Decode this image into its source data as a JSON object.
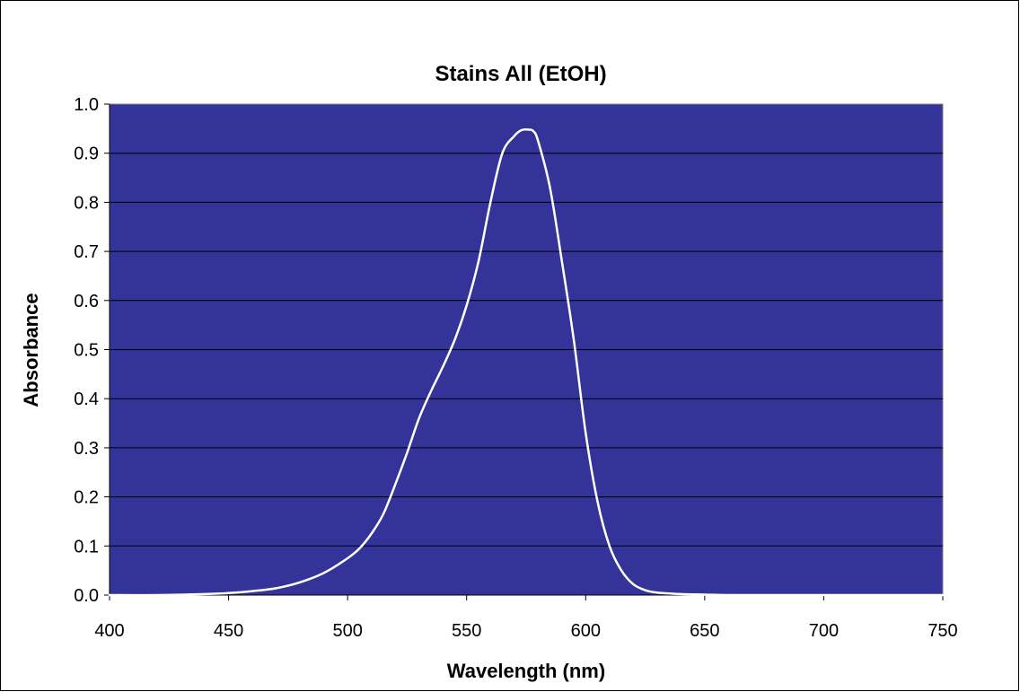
{
  "chart_data": {
    "type": "line",
    "title": "Stains All (EtOH)",
    "xlabel": "Wavelength (nm)",
    "ylabel": "Absorbance",
    "xlim": [
      400,
      750
    ],
    "ylim": [
      0.0,
      1.0
    ],
    "x_ticks": [
      "400",
      "450",
      "500",
      "550",
      "600",
      "650",
      "700",
      "750"
    ],
    "y_ticks": [
      "0.0",
      "0.1",
      "0.2",
      "0.3",
      "0.4",
      "0.5",
      "0.6",
      "0.7",
      "0.8",
      "0.9",
      "1.0"
    ],
    "grid": "horizontal",
    "legend": "none",
    "colors": {
      "plot_background": "#333399",
      "line": "#ffffff",
      "gridline": "#000000"
    },
    "series": [
      {
        "x": [
          400,
          420,
          440,
          450,
          460,
          470,
          480,
          490,
          500,
          505,
          510,
          515,
          520,
          525,
          530,
          535,
          540,
          545,
          550,
          555,
          560,
          565,
          570,
          573,
          576,
          578,
          580,
          585,
          590,
          595,
          600,
          605,
          610,
          615,
          620,
          625,
          630,
          640,
          650,
          660,
          680,
          700,
          720,
          750
        ],
        "y": [
          0.0,
          0.0,
          0.002,
          0.004,
          0.008,
          0.014,
          0.026,
          0.045,
          0.075,
          0.095,
          0.125,
          0.165,
          0.225,
          0.29,
          0.36,
          0.415,
          0.465,
          0.52,
          0.59,
          0.68,
          0.8,
          0.9,
          0.935,
          0.947,
          0.948,
          0.945,
          0.925,
          0.83,
          0.68,
          0.52,
          0.33,
          0.19,
          0.1,
          0.05,
          0.022,
          0.01,
          0.005,
          0.002,
          0.001,
          0.0,
          0.0,
          0.0,
          0.0,
          0.0
        ]
      }
    ]
  }
}
